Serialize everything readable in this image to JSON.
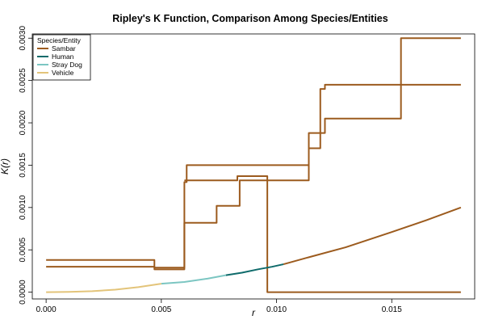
{
  "chart_data": {
    "type": "line",
    "title": "Ripley's K Function, Comparison Among Species/Entities",
    "xlabel": "r",
    "ylabel": "K(r)",
    "xlim": [
      -0.0006,
      0.0186
    ],
    "ylim": [
      -8e-05,
      0.00305
    ],
    "x_ticks": [
      0,
      0.005,
      0.01,
      0.015
    ],
    "x_tick_labels": [
      "0.000",
      "0.005",
      "0.010",
      "0.015"
    ],
    "y_ticks": [
      0,
      0.0005,
      0.001,
      0.0015,
      0.002,
      0.0025,
      0.003
    ],
    "y_tick_labels": [
      "0.0000",
      "0.0005",
      "0.0010",
      "0.0015",
      "0.0020",
      "0.0025",
      "0.0030"
    ],
    "grid": false,
    "legend": {
      "title": "Species/Entity",
      "placement": "top-left",
      "entries": [
        {
          "name": "Sambar",
          "color": "#9c5b1e"
        },
        {
          "name": "Human",
          "color": "#0f6b6b"
        },
        {
          "name": "Stray Dog",
          "color": "#7cc6c2"
        },
        {
          "name": "Vehicle",
          "color": "#e3c47a"
        }
      ]
    },
    "series": [
      {
        "name": "Sambar",
        "color": "#9c5b1e",
        "step": true,
        "points": [
          [
            0,
            0.00038
          ],
          [
            0.0047,
            0.00038
          ],
          [
            0.0047,
            0.00029
          ],
          [
            0.006,
            0.00029
          ],
          [
            0.006,
            0.0013
          ],
          [
            0.0061,
            0.0013
          ],
          [
            0.0061,
            0.0015
          ],
          [
            0.0114,
            0.0015
          ],
          [
            0.0114,
            0.0017
          ],
          [
            0.0119,
            0.0017
          ],
          [
            0.0119,
            0.0024
          ],
          [
            0.0121,
            0.0024
          ],
          [
            0.0121,
            0.00245
          ],
          [
            0.018,
            0.00245
          ]
        ]
      },
      {
        "name": "Sambar",
        "color": "#9c5b1e",
        "step": true,
        "points": [
          [
            0,
            0.0003
          ],
          [
            0.0047,
            0.0003
          ],
          [
            0.0047,
            0.00027
          ],
          [
            0.006,
            0.00027
          ],
          [
            0.006,
            0.00082
          ],
          [
            0.0074,
            0.00082
          ],
          [
            0.0074,
            0.00102
          ],
          [
            0.0084,
            0.00102
          ],
          [
            0.0084,
            0.00132
          ],
          [
            0.0114,
            0.00132
          ],
          [
            0.0114,
            0.00188
          ],
          [
            0.0121,
            0.00188
          ],
          [
            0.0121,
            0.00205
          ],
          [
            0.0154,
            0.00205
          ],
          [
            0.0154,
            0.003
          ],
          [
            0.018,
            0.003
          ]
        ]
      },
      {
        "name": "Sambar",
        "color": "#9c5b1e",
        "step": true,
        "points": [
          [
            0.006,
            0.00132
          ],
          [
            0.0083,
            0.00132
          ],
          [
            0.0083,
            0.00137
          ],
          [
            0.0096,
            0.00137
          ],
          [
            0.0096,
            0
          ],
          [
            0.018,
            0
          ]
        ]
      },
      {
        "name": "Sambar",
        "color": "#9c5b1e",
        "step": false,
        "points": [
          [
            0.0103,
            0.00033
          ],
          [
            0.0115,
            0.00042
          ],
          [
            0.013,
            0.00053
          ],
          [
            0.015,
            0.00071
          ],
          [
            0.0165,
            0.00085
          ],
          [
            0.018,
            0.001
          ]
        ]
      },
      {
        "name": "Human",
        "color": "#0f6b6b",
        "step": false,
        "points": [
          [
            0.0078,
            0.0002
          ],
          [
            0.0085,
            0.00023
          ],
          [
            0.0092,
            0.00027
          ],
          [
            0.0098,
            0.0003
          ],
          [
            0.0103,
            0.00033
          ]
        ]
      },
      {
        "name": "Stray Dog",
        "color": "#7cc6c2",
        "step": false,
        "points": [
          [
            0.005,
            0.0001
          ],
          [
            0.006,
            0.00012
          ],
          [
            0.007,
            0.00016
          ],
          [
            0.0078,
            0.0002
          ]
        ]
      },
      {
        "name": "Vehicle",
        "color": "#e3c47a",
        "step": false,
        "points": [
          [
            0,
            0
          ],
          [
            0.001,
            3e-06
          ],
          [
            0.002,
            1.2e-05
          ],
          [
            0.003,
            3e-05
          ],
          [
            0.004,
            6e-05
          ],
          [
            0.005,
            0.0001
          ]
        ]
      }
    ]
  }
}
